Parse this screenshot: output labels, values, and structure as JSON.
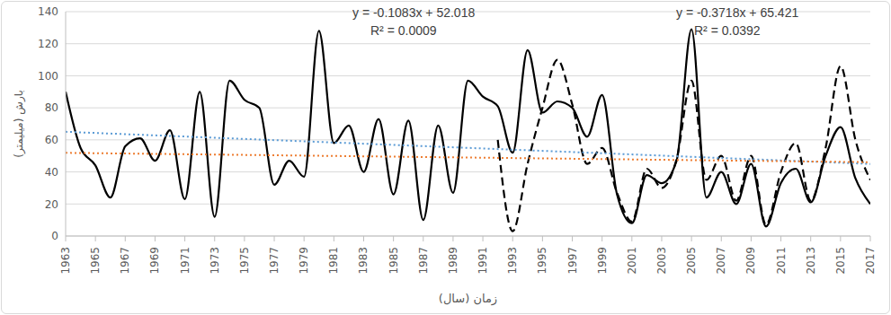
{
  "chart_data": {
    "type": "line",
    "x_label": "زمان (سال)",
    "y_label": "بارش (میلیمتر)",
    "x": [
      1963,
      1964,
      1965,
      1966,
      1967,
      1968,
      1969,
      1970,
      1971,
      1972,
      1973,
      1974,
      1975,
      1976,
      1977,
      1978,
      1979,
      1980,
      1981,
      1982,
      1983,
      1984,
      1985,
      1986,
      1987,
      1988,
      1989,
      1990,
      1991,
      1992,
      1993,
      1994,
      1995,
      1996,
      1997,
      1998,
      1999,
      2000,
      2001,
      2002,
      2003,
      2004,
      2005,
      2006,
      2007,
      2008,
      2009,
      2010,
      2011,
      2012,
      2013,
      2014,
      2015,
      2016,
      2017
    ],
    "series": [
      {
        "color": "#000000",
        "line_style": "solid",
        "values": [
          90,
          55,
          44,
          24,
          56,
          61,
          47,
          66,
          23,
          90,
          12,
          97,
          85,
          80,
          32,
          47,
          37,
          128,
          58,
          69,
          40,
          73,
          26,
          72,
          10,
          69,
          27,
          97,
          87,
          81,
          52,
          116,
          77,
          84,
          80,
          62,
          88,
          26,
          8,
          38,
          33,
          47,
          129,
          24,
          40,
          20,
          45,
          6,
          33,
          42,
          21,
          50,
          68,
          36,
          20
        ]
      },
      {
        "color": "#000000",
        "line_style": "dashed",
        "x": [
          1992,
          1993,
          1994,
          1995,
          1996,
          1997,
          1998,
          1999,
          2000,
          2001,
          2002,
          2003,
          2004,
          2005,
          2006,
          2007,
          2008,
          2009,
          2010,
          2011,
          2012,
          2013,
          2014,
          2015,
          2016,
          2017
        ],
        "values": [
          60,
          3,
          45,
          80,
          110,
          82,
          45,
          55,
          27,
          9,
          42,
          30,
          48,
          97,
          35,
          50,
          22,
          50,
          7,
          40,
          58,
          22,
          55,
          106,
          60,
          35
        ]
      },
      {
        "color": "#5b9bd5",
        "line_style": "dotted",
        "x": [
          1963,
          2017
        ],
        "values": [
          65.05,
          44.97
        ]
      },
      {
        "color": "#ed7d31",
        "line_style": "dotted",
        "x": [
          1963,
          2017
        ],
        "values": [
          51.91,
          46.06
        ]
      }
    ],
    "annotations": [
      "y = -0.1083x + 52.018",
      "R² = 0.0009",
      "y = -0.3718x + 65.421",
      "R² = 0.0392"
    ],
    "xlim": [
      1963,
      2017
    ],
    "xticks": [
      1963,
      1965,
      1967,
      1969,
      1971,
      1973,
      1975,
      1977,
      1979,
      1981,
      1983,
      1985,
      1987,
      1989,
      1991,
      1993,
      1995,
      1997,
      1999,
      2001,
      2003,
      2005,
      2007,
      2009,
      2011,
      2013,
      2015,
      2017
    ],
    "ylim": [
      0,
      140
    ],
    "yticks": [
      0,
      20,
      40,
      60,
      80,
      100,
      120,
      140
    ],
    "grid": true
  }
}
